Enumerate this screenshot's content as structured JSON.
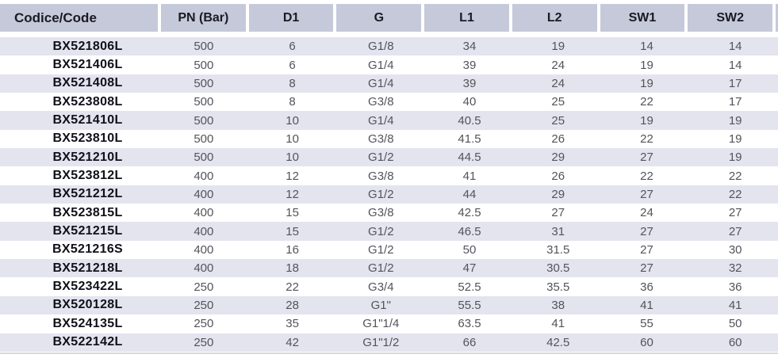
{
  "table": {
    "columns": [
      "Codice/Code",
      "PN (Bar)",
      "D1",
      "G",
      "L1",
      "L2",
      "SW1",
      "SW2"
    ],
    "rows": [
      [
        "BX521806L",
        "500",
        "6",
        "G1/8",
        "34",
        "19",
        "14",
        "14"
      ],
      [
        "BX521406L",
        "500",
        "6",
        "G1/4",
        "39",
        "24",
        "19",
        "14"
      ],
      [
        "BX521408L",
        "500",
        "8",
        "G1/4",
        "39",
        "24",
        "19",
        "17"
      ],
      [
        "BX523808L",
        "500",
        "8",
        "G3/8",
        "40",
        "25",
        "22",
        "17"
      ],
      [
        "BX521410L",
        "500",
        "10",
        "G1/4",
        "40.5",
        "25",
        "19",
        "19"
      ],
      [
        "BX523810L",
        "500",
        "10",
        "G3/8",
        "41.5",
        "26",
        "22",
        "19"
      ],
      [
        "BX521210L",
        "500",
        "10",
        "G1/2",
        "44.5",
        "29",
        "27",
        "19"
      ],
      [
        "BX523812L",
        "400",
        "12",
        "G3/8",
        "41",
        "26",
        "22",
        "22"
      ],
      [
        "BX521212L",
        "400",
        "12",
        "G1/2",
        "44",
        "29",
        "27",
        "22"
      ],
      [
        "BX523815L",
        "400",
        "15",
        "G3/8",
        "42.5",
        "27",
        "24",
        "27"
      ],
      [
        "BX521215L",
        "400",
        "15",
        "G1/2",
        "46.5",
        "31",
        "27",
        "27"
      ],
      [
        "BX521216S",
        "400",
        "16",
        "G1/2",
        "50",
        "31.5",
        "27",
        "30"
      ],
      [
        "BX521218L",
        "400",
        "18",
        "G1/2",
        "47",
        "30.5",
        "27",
        "32"
      ],
      [
        "BX523422L",
        "250",
        "22",
        "G3/4",
        "52.5",
        "35.5",
        "36",
        "36"
      ],
      [
        "BX520128L",
        "250",
        "28",
        "G1\"",
        "55.5",
        "38",
        "41",
        "41"
      ],
      [
        "BX524135L",
        "250",
        "35",
        "G1\"1/4",
        "63.5",
        "41",
        "55",
        "50"
      ],
      [
        "BX522142L",
        "250",
        "42",
        "G1\"1/2",
        "66",
        "42.5",
        "60",
        "60"
      ]
    ],
    "colors": {
      "header_bg": "#c5c9da",
      "row_shade_bg": "#e3e4ee",
      "header_text": "#1a1a23",
      "code_text": "#10101a",
      "value_text": "#53535c",
      "bottom_rule": "#d8d8da"
    },
    "shaded_rows": "odd (1st, 3rd, 5th, ...)"
  }
}
